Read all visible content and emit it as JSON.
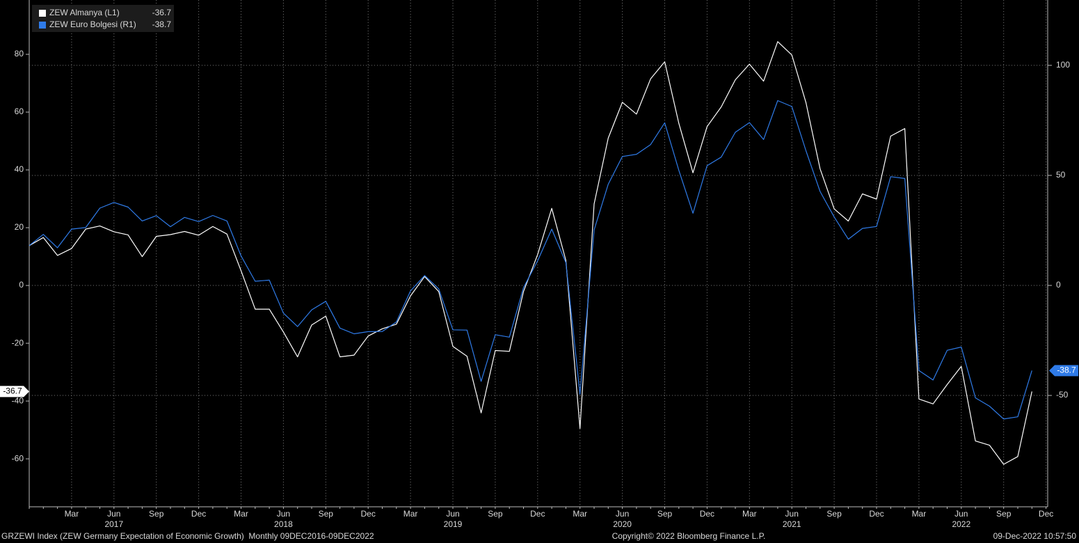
{
  "chart_data": {
    "type": "line",
    "categories": [
      null,
      null,
      null,
      "Mar",
      null,
      null,
      "Jun",
      null,
      null,
      "Sep",
      null,
      null,
      "Dec",
      null,
      null,
      "Mar",
      null,
      null,
      "Jun",
      null,
      null,
      "Sep",
      null,
      null,
      "Dec",
      null,
      null,
      "Mar",
      null,
      null,
      "Jun",
      null,
      null,
      "Sep",
      null,
      null,
      "Dec",
      null,
      null,
      "Mar",
      null,
      null,
      "Jun",
      null,
      null,
      "Sep",
      null,
      null,
      "Dec",
      null,
      null,
      "Mar",
      null,
      null,
      "Jun",
      null,
      null,
      "Sep",
      null,
      null,
      "Dec",
      null,
      null,
      "Mar",
      null,
      null,
      "Jun",
      null,
      null,
      "Sep",
      null,
      null,
      "Dec"
    ],
    "years": [
      "2017",
      "2018",
      "2019",
      "2020",
      "2021",
      "2022"
    ],
    "series": [
      {
        "name": "ZEW Almanya (L1)",
        "color": "#ffffff",
        "axis": "y",
        "values": [
          13.8,
          16.6,
          10.4,
          12.8,
          19.5,
          20.6,
          18.6,
          17.5,
          10.0,
          17.0,
          17.6,
          18.7,
          17.4,
          20.4,
          17.8,
          5.1,
          -8.2,
          -8.2,
          -16.1,
          -24.7,
          -13.7,
          -10.6,
          -24.7,
          -24.1,
          -17.5,
          -15.0,
          -13.4,
          -3.6,
          3.1,
          -2.1,
          -21.1,
          -24.5,
          -44.1,
          -22.5,
          -22.8,
          -2.1,
          10.7,
          26.7,
          8.7,
          -49.5,
          28.2,
          51.0,
          63.4,
          59.3,
          71.5,
          77.4,
          56.1,
          39.0,
          55.0,
          61.8,
          71.2,
          76.6,
          70.7,
          84.4,
          79.8,
          63.3,
          40.4,
          26.5,
          22.3,
          31.7,
          29.9,
          51.7,
          54.3,
          -39.3,
          -41.0,
          -34.3,
          -28.0,
          -53.8,
          -55.3,
          -61.9,
          -59.2,
          -36.7,
          null
        ]
      },
      {
        "name": "ZEW Euro Bolgesi (R1)",
        "color": "#2f7be8",
        "axis": "y2",
        "values": [
          18.1,
          23.2,
          17.1,
          25.6,
          26.3,
          35.1,
          37.7,
          35.6,
          29.3,
          31.7,
          26.7,
          30.9,
          29.0,
          31.8,
          29.3,
          13.4,
          1.9,
          2.4,
          -12.6,
          -18.7,
          -11.1,
          -7.2,
          -19.4,
          -22.0,
          -21.0,
          -20.9,
          -16.6,
          -2.5,
          4.5,
          -1.6,
          -20.2,
          -20.3,
          -43.6,
          -22.4,
          -23.5,
          -1.0,
          11.2,
          25.6,
          10.4,
          -49.5,
          25.2,
          46.0,
          58.6,
          59.6,
          64.0,
          73.9,
          52.3,
          32.8,
          54.4,
          58.3,
          69.6,
          74.0,
          66.3,
          84.0,
          81.3,
          61.2,
          42.7,
          31.1,
          21.0,
          25.9,
          26.8,
          49.4,
          48.6,
          -38.7,
          -43.0,
          -29.5,
          -28.0,
          -51.1,
          -54.9,
          -60.7,
          -59.7,
          -38.7,
          null
        ]
      }
    ],
    "ylim": [
      -76.6,
      98.8
    ],
    "yticks": [
      -60,
      -40,
      -20,
      0,
      20,
      40,
      60,
      80
    ],
    "y2lim": [
      -100.6,
      129.7
    ],
    "y2ticks": [
      -50,
      0,
      50,
      100
    ],
    "grid": true,
    "legend": "top-left",
    "footer_left": "GRZEWI Index (ZEW Germany Expectation of Economic Growth)  Monthly 09DEC2016-09DEC2022",
    "footer_center": "Copyright© 2022 Bloomberg Finance L.P.",
    "footer_right": "09-Dec-2022 10:57:50"
  }
}
